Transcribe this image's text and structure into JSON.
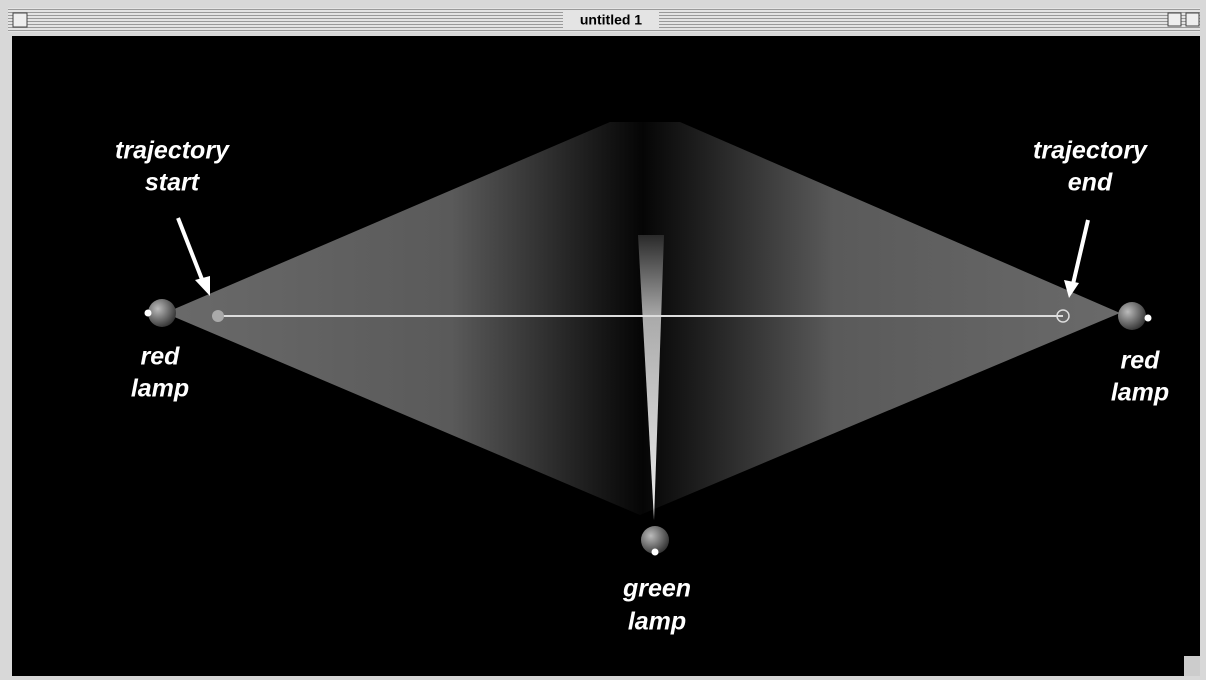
{
  "window": {
    "title": "untitled 1"
  },
  "labels": {
    "trajectory_start": [
      "trajectory",
      "start"
    ],
    "trajectory_end": [
      "trajectory",
      "end"
    ],
    "left_red_lamp": [
      "red",
      "lamp"
    ],
    "right_red_lamp": [
      "red",
      "lamp"
    ],
    "green_lamp": [
      "green",
      "lamp"
    ]
  }
}
